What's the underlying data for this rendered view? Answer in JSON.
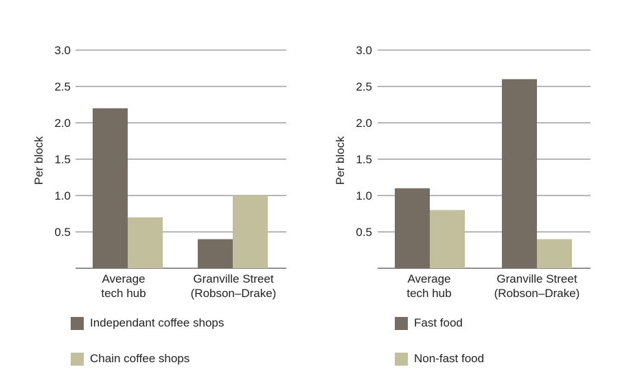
{
  "chart_data": [
    {
      "type": "bar",
      "ylabel": "Per block",
      "ylim": [
        0,
        3.0
      ],
      "yticks": [
        "0.5",
        "1.0",
        "1.5",
        "2.0",
        "2.5",
        "3.0"
      ],
      "grid": true,
      "categories": [
        [
          "Average",
          "tech hub"
        ],
        [
          "Granville Street",
          "(Robson–Drake)"
        ]
      ],
      "series": [
        {
          "name": "Independant coffee shops",
          "color": "#766d62",
          "values": [
            2.2,
            0.4
          ]
        },
        {
          "name": "Chain coffee shops",
          "color": "#c1bf9c",
          "values": [
            0.7,
            1.0
          ]
        }
      ],
      "legend_position": "bottom"
    },
    {
      "type": "bar",
      "ylabel": "Per block",
      "ylim": [
        0,
        3.0
      ],
      "yticks": [
        "0.5",
        "1.0",
        "1.5",
        "2.0",
        "2.5",
        "3.0"
      ],
      "grid": true,
      "categories": [
        [
          "Average",
          "tech hub"
        ],
        [
          "Granville Street",
          "(Robson–Drake)"
        ]
      ],
      "series": [
        {
          "name": "Fast food",
          "color": "#766d62",
          "values": [
            1.1,
            2.6
          ]
        },
        {
          "name": "Non-fast food",
          "color": "#c1bf9c",
          "values": [
            0.8,
            0.4
          ]
        }
      ],
      "legend_position": "bottom"
    }
  ]
}
